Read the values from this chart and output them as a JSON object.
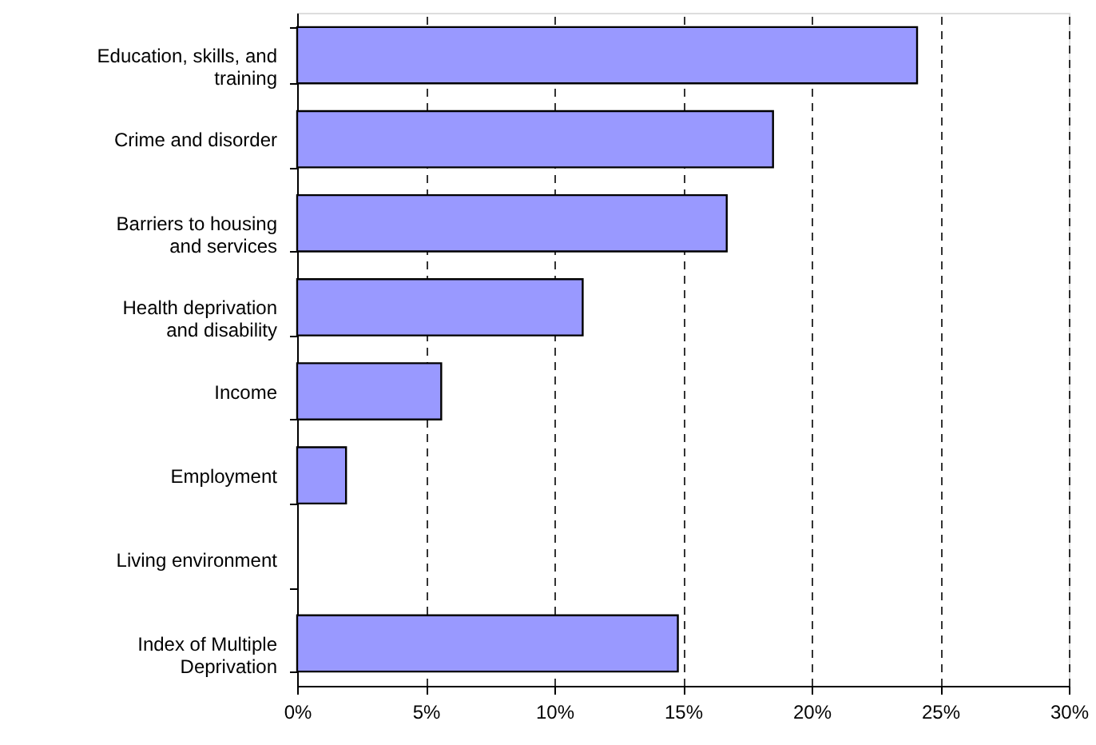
{
  "chart_data": {
    "type": "bar",
    "orientation": "horizontal",
    "categories": [
      "Education, skills, and\ntraining",
      "Crime and disorder",
      "Barriers to housing\nand services",
      "Health deprivation\nand disability",
      "Income",
      "Employment",
      "Living environment",
      "Index of Multiple\nDeprivation"
    ],
    "values": [
      24.1,
      18.5,
      16.7,
      11.1,
      5.6,
      1.9,
      0,
      14.8
    ],
    "color": "#9999ff",
    "xlim": [
      0,
      30
    ],
    "xticks": [
      {
        "value": 0,
        "label": "0%"
      },
      {
        "value": 5,
        "label": "5%"
      },
      {
        "value": 10,
        "label": "10%"
      },
      {
        "value": 15,
        "label": "15%"
      },
      {
        "value": 20,
        "label": "20%"
      },
      {
        "value": 25,
        "label": "25%"
      },
      {
        "value": 30,
        "label": "30%"
      }
    ],
    "grid": "x",
    "line_style": "dashed"
  }
}
